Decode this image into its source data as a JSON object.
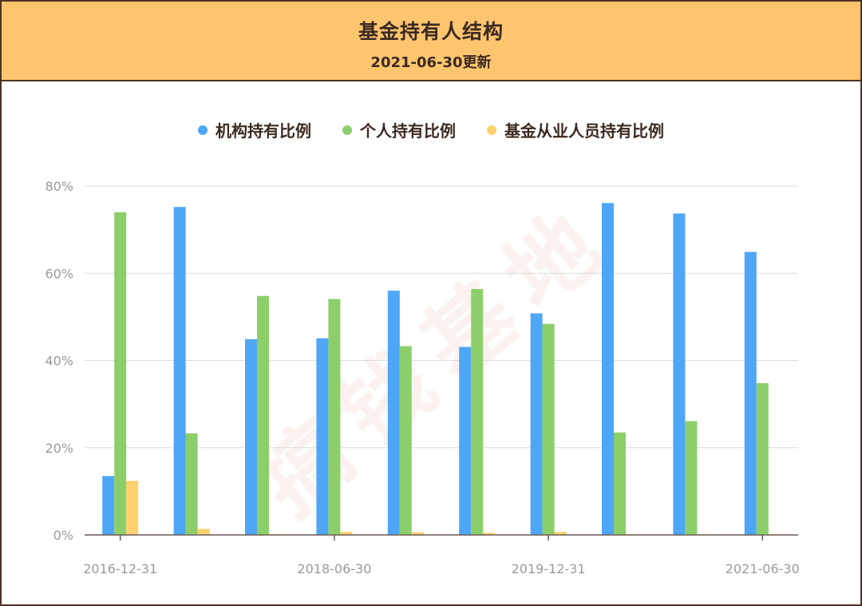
{
  "header": {
    "title": "基金持有人结构",
    "subtitle": "2021-06-30更新"
  },
  "watermark": "搞钱基地",
  "legend": [
    {
      "label": "机构持有比例",
      "color": "#4ea6f7"
    },
    {
      "label": "个人持有比例",
      "color": "#8ccf6a"
    },
    {
      "label": "基金从业人员持有比例",
      "color": "#fdd06e"
    }
  ],
  "chart_data": {
    "type": "bar",
    "categories": [
      "2016-12-31",
      "",
      "",
      "2018-06-30",
      "",
      "",
      "2019-12-31",
      "",
      "",
      "2021-06-30"
    ],
    "x_tick_labels": [
      "2016-12-31",
      "2018-06-30",
      "2019-12-31",
      "2021-06-30"
    ],
    "x_tick_label_indices": [
      0,
      3,
      6,
      9
    ],
    "series": [
      {
        "name": "机构持有比例",
        "color": "#4ea6f7",
        "values": [
          13.5,
          75.2,
          44.9,
          45.1,
          56.0,
          43.1,
          50.8,
          76.1,
          73.7,
          64.9
        ]
      },
      {
        "name": "个人持有比例",
        "color": "#8ccf6a",
        "values": [
          74.0,
          23.3,
          54.8,
          54.1,
          43.3,
          56.4,
          48.4,
          23.5,
          26.1,
          34.8
        ]
      },
      {
        "name": "基金从业人员持有比例",
        "color": "#fdd06e",
        "values": [
          12.4,
          1.4,
          0.2,
          0.7,
          0.6,
          0.5,
          0.7,
          0.2,
          0.1,
          0.2
        ]
      }
    ],
    "ylim": [
      0,
      80
    ],
    "yticks": [
      0,
      20,
      40,
      60,
      80
    ],
    "ytick_labels": [
      "0%",
      "20%",
      "40%",
      "60%",
      "80%"
    ],
    "grid": true,
    "legend_position": "top-center"
  }
}
